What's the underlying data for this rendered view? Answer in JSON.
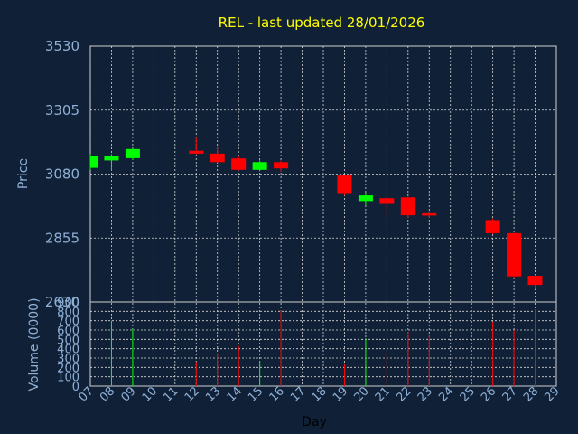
{
  "chart_data": {
    "type": "candlestick",
    "title": "REL - last updated 28/01/2026",
    "price_panel": {
      "ylabel": "Price",
      "ylim": [
        2630,
        3530
      ],
      "yticks": [
        3530,
        3305,
        3080,
        2855,
        2630
      ],
      "grid": true
    },
    "volume_panel": {
      "ylabel": "Volume (0000)",
      "ylim": [
        0,
        900
      ],
      "yticks": [
        900,
        800,
        700,
        600,
        500,
        400,
        300,
        200,
        100,
        0
      ],
      "grid": true
    },
    "xlabel": "Day",
    "x_ticks": [
      "07",
      "08",
      "09",
      "10",
      "11",
      "12",
      "13",
      "14",
      "15",
      "16",
      "17",
      "18",
      "19",
      "20",
      "21",
      "22",
      "23",
      "24",
      "25",
      "26",
      "27",
      "28",
      "29"
    ],
    "candles": [
      {
        "day": 7,
        "open": 3102,
        "close": 3142,
        "high": 3150,
        "low": 3095,
        "volume": 0
      },
      {
        "day": 8,
        "open": 3128,
        "close": 3142,
        "high": 3150,
        "low": 3092,
        "volume": 700
      },
      {
        "day": 9,
        "open": 3136,
        "close": 3168,
        "high": 3170,
        "low": 3130,
        "volume": 610
      },
      {
        "day": 12,
        "open": 3162,
        "close": 3152,
        "high": 3208,
        "low": 3150,
        "volume": 260
      },
      {
        "day": 13,
        "open": 3152,
        "close": 3122,
        "high": 3175,
        "low": 3120,
        "volume": 340
      },
      {
        "day": 14,
        "open": 3135,
        "close": 3095,
        "high": 3142,
        "low": 3092,
        "volume": 430
      },
      {
        "day": 15,
        "open": 3095,
        "close": 3122,
        "high": 3128,
        "low": 3090,
        "volume": 270
      },
      {
        "day": 16,
        "open": 3122,
        "close": 3100,
        "high": 3128,
        "low": 3088,
        "volume": 810
      },
      {
        "day": 19,
        "open": 3075,
        "close": 3010,
        "high": 3078,
        "low": 3005,
        "volume": 230
      },
      {
        "day": 20,
        "open": 2985,
        "close": 3005,
        "high": 3012,
        "low": 2970,
        "volume": 510
      },
      {
        "day": 21,
        "open": 2995,
        "close": 2975,
        "high": 3000,
        "low": 2935,
        "volume": 360
      },
      {
        "day": 22,
        "open": 2998,
        "close": 2935,
        "high": 3000,
        "low": 2925,
        "volume": 580
      },
      {
        "day": 23,
        "open": 2942,
        "close": 2934,
        "high": 2946,
        "low": 2925,
        "volume": 540
      },
      {
        "day": 26,
        "open": 2918,
        "close": 2872,
        "high": 2924,
        "low": 2868,
        "volume": 690
      },
      {
        "day": 27,
        "open": 2872,
        "close": 2720,
        "high": 2874,
        "low": 2715,
        "volume": 600
      },
      {
        "day": 28,
        "open": 2722,
        "close": 2690,
        "high": 2725,
        "low": 2675,
        "volume": 820
      }
    ],
    "colors": {
      "up": "#00ff00",
      "down": "#ff0000",
      "background": "#102137",
      "title": "#ffff00",
      "axis_text": "#8fb0d6",
      "grid": "#d8d8d8"
    }
  }
}
